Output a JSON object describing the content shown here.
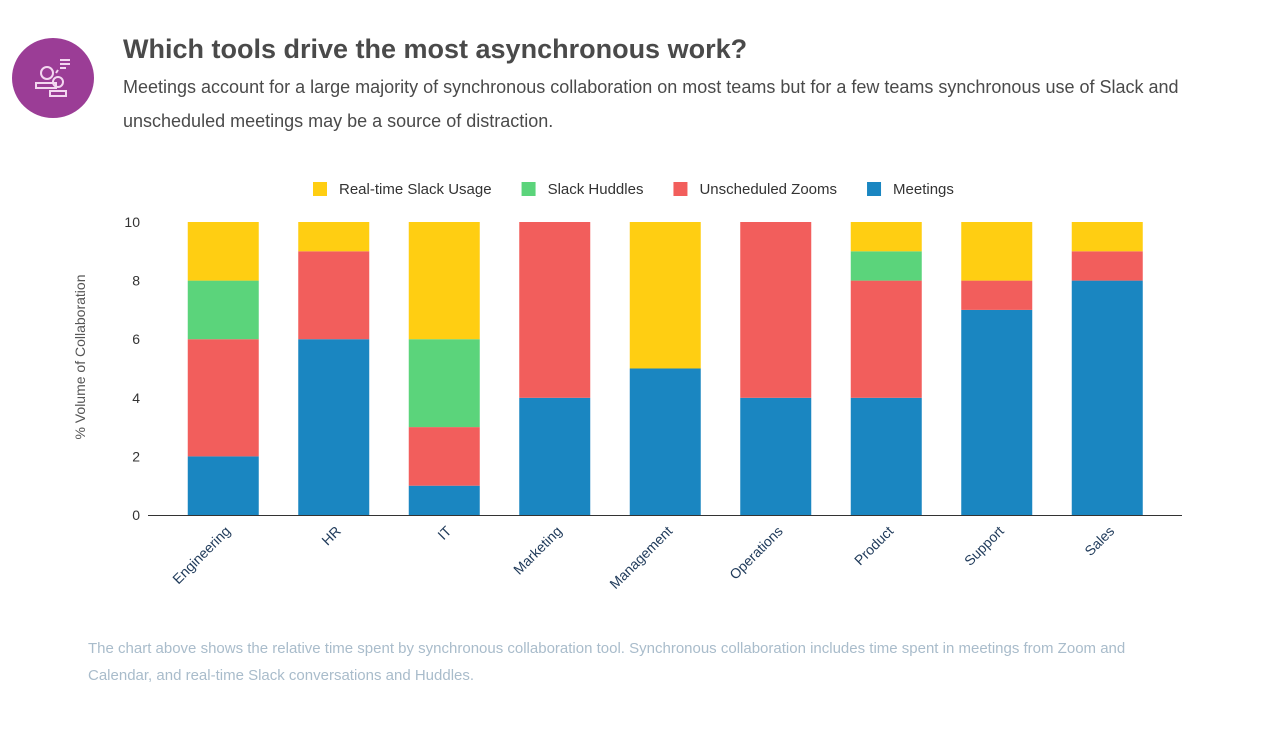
{
  "header": {
    "title": "Which tools drive the most asynchronous work?",
    "subtitle": "Meetings account for a large majority of synchronous collaboration on most teams but for a few teams synchronous use of Slack and unscheduled meetings may be a source of distraction.",
    "icon": "people-chat-icon",
    "icon_color": "#9b3d96"
  },
  "footnote": "The chart above shows the relative time spent by synchronous collaboration tool. Synchronous collaboration includes time spent in meetings from Zoom and Calendar, and real-time Slack conversations and Huddles.",
  "chart_data": {
    "type": "bar",
    "stacked": true,
    "title": "",
    "xlabel": "",
    "ylabel": "% Volume of Collaboration",
    "ylim": [
      0,
      10
    ],
    "yticks": [
      0,
      2,
      4,
      6,
      8,
      10
    ],
    "grid": false,
    "legend": "top",
    "categories": [
      "Engineering",
      "HR",
      "IT",
      "Marketing",
      "Management",
      "Operations",
      "Product",
      "Support",
      "Sales"
    ],
    "series": [
      {
        "name": "Meetings",
        "color": "#1a86c1",
        "values": [
          2,
          6,
          1,
          4,
          5,
          4,
          4,
          7,
          8
        ]
      },
      {
        "name": "Unscheduled Zooms",
        "color": "#f25e5c",
        "values": [
          4,
          3,
          2,
          6,
          0,
          6,
          4,
          1,
          1
        ]
      },
      {
        "name": "Slack Huddles",
        "color": "#5bd47b",
        "values": [
          2,
          0,
          3,
          0,
          0,
          0,
          1,
          0,
          0
        ]
      },
      {
        "name": "Real-time Slack Usage",
        "color": "#ffce12",
        "values": [
          2,
          1,
          4,
          0,
          5,
          0,
          1,
          2,
          1
        ]
      }
    ],
    "legend_order": [
      "Real-time Slack Usage",
      "Slack Huddles",
      "Unscheduled Zooms",
      "Meetings"
    ]
  }
}
